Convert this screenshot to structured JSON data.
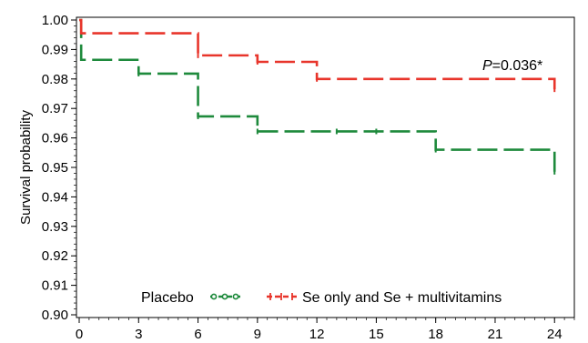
{
  "chart_data": {
    "type": "line",
    "ylabel": "Survival probability",
    "xlabel": "",
    "xlim": [
      0,
      25
    ],
    "ylim": [
      0.9,
      1.0
    ],
    "x_ticks": [
      0,
      3,
      6,
      9,
      12,
      15,
      18,
      21,
      24
    ],
    "y_ticks": [
      0.9,
      0.91,
      0.92,
      0.93,
      0.94,
      0.95,
      0.96,
      0.97,
      0.98,
      0.99,
      1.0
    ],
    "y_tick_labels": [
      "0.90",
      "0.91",
      "0.92",
      "0.93",
      "0.94",
      "0.95",
      "0.96",
      "0.97",
      "0.98",
      "0.99",
      "1.00"
    ],
    "x_tick_labels": [
      "0",
      "3",
      "6",
      "9",
      "12",
      "15",
      "18",
      "21",
      "24"
    ],
    "annotation": {
      "italic": "P",
      "rest": "=0.036*"
    },
    "legend_placement": "bottom",
    "series": [
      {
        "name": "Placebo",
        "color": "#1e8a3c",
        "x": [
          0,
          0.1,
          3,
          6,
          9,
          18,
          24,
          24
        ],
        "y": [
          1.0,
          0.9865,
          0.9818,
          0.9673,
          0.9622,
          0.956,
          0.956,
          0.9485
        ],
        "censor_x": [
          3,
          6,
          9,
          13,
          15,
          18,
          24
        ]
      },
      {
        "name": "Se only and Se + multivitamins",
        "color": "#e8352b",
        "x": [
          0,
          0.1,
          6,
          9,
          12,
          24,
          24
        ],
        "y": [
          1.0,
          0.9955,
          0.988,
          0.9858,
          0.98,
          0.98,
          0.9765
        ],
        "censor_x": [
          6,
          9,
          12,
          24
        ]
      }
    ]
  }
}
